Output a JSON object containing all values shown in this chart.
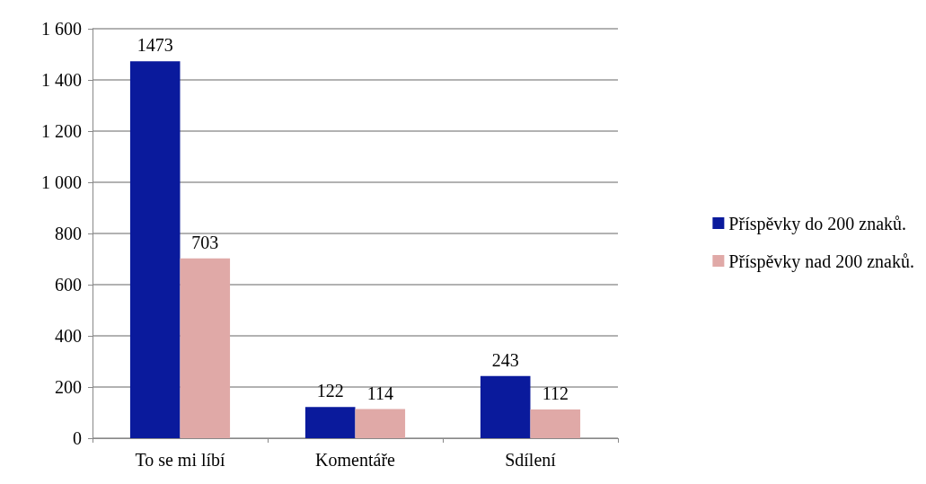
{
  "chart_data": {
    "type": "bar",
    "categories": [
      "To se mi líbí",
      "Komentáře",
      "Sdílení"
    ],
    "series": [
      {
        "name": "Příspěvky do 200 znaků.",
        "color": "#0a1a9c",
        "values": [
          1473,
          122,
          243
        ]
      },
      {
        "name": "Příspěvky nad 200 znaků.",
        "color": "#e0a9a7",
        "values": [
          703,
          114,
          112
        ]
      }
    ],
    "ylim": [
      0,
      1600
    ],
    "yticks": [
      0,
      200,
      400,
      600,
      800,
      {
        "value": 1000,
        "label": "1 000"
      },
      {
        "value": 1200,
        "label": "1 200"
      },
      {
        "value": 1400,
        "label": "1 400"
      },
      {
        "value": 1600,
        "label": "1 600"
      }
    ],
    "grid": "y",
    "legend": "right",
    "data_labels": true
  }
}
